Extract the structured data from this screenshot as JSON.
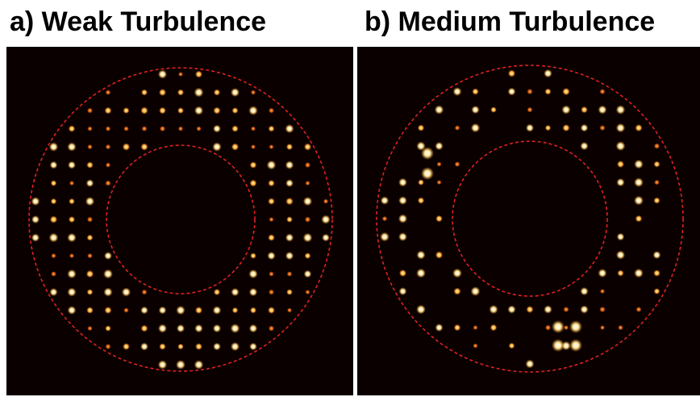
{
  "panels": [
    {
      "title": "a) Weak Turbulence"
    },
    {
      "title": "b) Medium Turbulence"
    }
  ]
}
